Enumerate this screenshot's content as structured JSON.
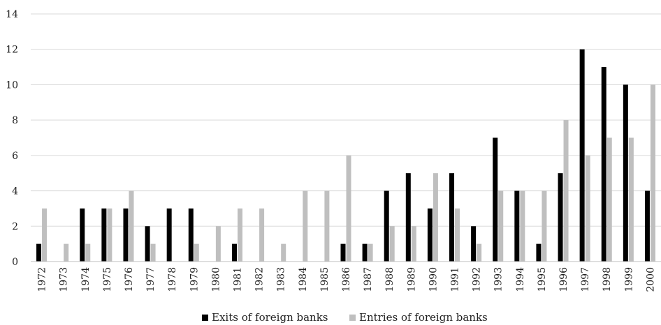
{
  "chart_data": {
    "type": "bar",
    "categories": [
      "1972",
      "1973",
      "1974",
      "1975",
      "1976",
      "1977",
      "1978",
      "1979",
      "1980",
      "1981",
      "1982",
      "1983",
      "1984",
      "1985",
      "1986",
      "1987",
      "1988",
      "1989",
      "1990",
      "1991",
      "1992",
      "1993",
      "1994",
      "1995",
      "1996",
      "1997",
      "1998",
      "1999",
      "2000"
    ],
    "series": [
      {
        "name": "Exits of foreign banks",
        "color": "#000000",
        "values": [
          1,
          0,
          3,
          3,
          3,
          2,
          3,
          3,
          0,
          1,
          0,
          0,
          0,
          0,
          1,
          1,
          4,
          5,
          3,
          5,
          2,
          7,
          4,
          1,
          5,
          12,
          11,
          10,
          4
        ]
      },
      {
        "name": "Entries of foreign banks",
        "color": "#bfbfbf",
        "values": [
          3,
          1,
          1,
          3,
          4,
          1,
          0,
          1,
          2,
          3,
          3,
          1,
          4,
          4,
          6,
          1,
          2,
          2,
          5,
          3,
          1,
          4,
          4,
          4,
          8,
          6,
          7,
          7,
          10
        ]
      }
    ],
    "ylim": [
      0,
      14
    ],
    "yticks": [
      "0",
      "2",
      "4",
      "6",
      "8",
      "10",
      "12",
      "14"
    ],
    "grid": true,
    "legend_position": "bottom",
    "title": "",
    "xlabel": "",
    "ylabel": ""
  }
}
